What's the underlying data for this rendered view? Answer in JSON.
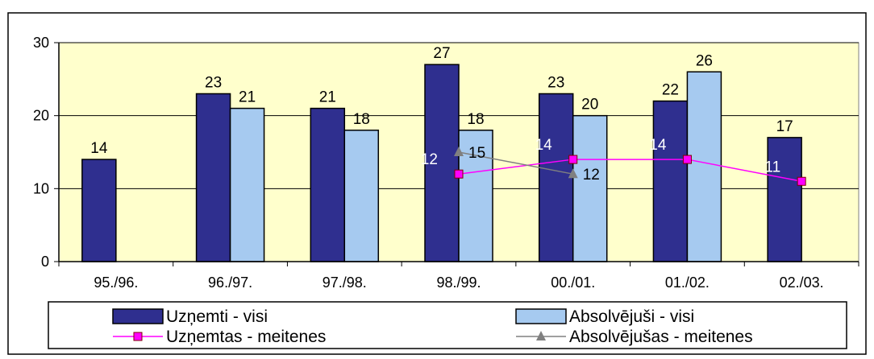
{
  "chart_data": {
    "type": "bar",
    "categories": [
      "95./96.",
      "96./97.",
      "97./98.",
      "98./99.",
      "00./01.",
      "01./02.",
      "02./03."
    ],
    "ylim": [
      0,
      30
    ],
    "yticks": [
      "0",
      "10",
      "20",
      "30"
    ],
    "grid": true,
    "legend_position": "bottom",
    "series": [
      {
        "name": "Uzņemti - visi",
        "kind": "bar",
        "color": "#2f2f8f",
        "values": [
          14,
          23,
          21,
          27,
          23,
          22,
          17
        ]
      },
      {
        "name": "Absolvējuši - visi",
        "kind": "bar",
        "color": "#a6caf0",
        "values": [
          null,
          21,
          18,
          18,
          20,
          26,
          null
        ]
      },
      {
        "name": "Uzņemtas - meitenes",
        "kind": "line",
        "color": "#ff00ff",
        "marker": "square",
        "values": [
          null,
          null,
          null,
          12,
          14,
          14,
          11
        ]
      },
      {
        "name": "Absolvējušas - meitenes",
        "kind": "line",
        "color": "#808080",
        "marker": "triangle",
        "values": [
          null,
          null,
          null,
          15,
          12,
          null,
          null
        ]
      }
    ],
    "plot_background": "#ffffcc"
  }
}
